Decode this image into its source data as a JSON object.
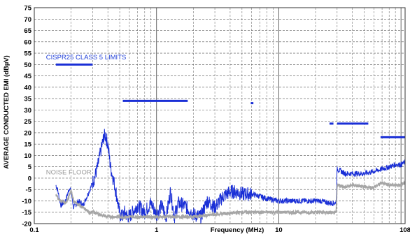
{
  "chart_data": {
    "type": "line",
    "x_scale": "log",
    "xlim": [
      0.1,
      108
    ],
    "ylim": [
      -20,
      75
    ],
    "xlabel": "Frequency (MHz)",
    "ylabel": "AVERAGE CONDUCTED EMI (dBµV)",
    "x_ticks": [
      {
        "value": 0.1,
        "label": "0.1"
      },
      {
        "value": 1,
        "label": "1"
      },
      {
        "value": 10,
        "label": "10"
      },
      {
        "value": 108,
        "label": "108"
      }
    ],
    "y_ticks": [
      75,
      70,
      65,
      60,
      55,
      50,
      45,
      40,
      35,
      30,
      25,
      20,
      15,
      10,
      5,
      0,
      -5,
      -10,
      -15,
      -20
    ],
    "grid": true,
    "annotations": [
      {
        "text": "CISPR25 CLASS 5 LIMITS",
        "color": "#1f3fd8",
        "anchor_x": 0.15,
        "anchor_y": 51
      },
      {
        "text": "NOISE FLOOR",
        "color": "#9a9a9a",
        "anchor_x": 0.15,
        "anchor_y": 1
      }
    ],
    "limits": [
      {
        "x0": 0.15,
        "x1": 0.3,
        "y": 50
      },
      {
        "x0": 0.53,
        "x1": 1.8,
        "y": 34
      },
      {
        "x0": 5.9,
        "x1": 6.2,
        "y": 33
      },
      {
        "x0": 26,
        "x1": 28,
        "y": 24
      },
      {
        "x0": 30,
        "x1": 54,
        "y": 24
      },
      {
        "x0": 68,
        "x1": 108,
        "y": 18
      }
    ],
    "series": [
      {
        "color": "#1a2fd6",
        "x": [
          0.15,
          0.155,
          0.165,
          0.18,
          0.195,
          0.2,
          0.21,
          0.23,
          0.25,
          0.27,
          0.29,
          0.31,
          0.33,
          0.35,
          0.37,
          0.38,
          0.4,
          0.42,
          0.45,
          0.48,
          0.5,
          0.52,
          0.55,
          0.58,
          0.62,
          0.7,
          0.8,
          0.9,
          1.0,
          1.1,
          1.2,
          1.3,
          1.4,
          1.5,
          1.7,
          2.0,
          2.3,
          2.6,
          3.0,
          3.5,
          4.0,
          4.5,
          5.0,
          6.0,
          7.0,
          8.0,
          10,
          12,
          15,
          18,
          22,
          26,
          29,
          29.5,
          30,
          35,
          40,
          50,
          60,
          70,
          80,
          90,
          100,
          108
        ],
        "y": [
          -3,
          -5,
          -12,
          -10,
          -4,
          -6,
          -13,
          -10,
          -12,
          -8,
          -4,
          0,
          5,
          12,
          18,
          19,
          15,
          5,
          -2,
          -10,
          -16,
          -17,
          -15,
          -17,
          -16,
          -12,
          -15,
          -11,
          -16,
          -12,
          -17,
          -6,
          -17,
          -11,
          -12,
          -16,
          -17,
          -10,
          -13,
          -8,
          -6,
          -6,
          -7,
          -7,
          -8,
          -9,
          -10,
          -10,
          -10,
          -10,
          -10,
          -11,
          -11,
          -10,
          4,
          2,
          2,
          2,
          3,
          4,
          5,
          6,
          6,
          7
        ]
      },
      {
        "color": "#a6a6a6",
        "x": [
          0.15,
          0.16,
          0.17,
          0.18,
          0.19,
          0.2,
          0.21,
          0.22,
          0.25,
          0.28,
          0.3,
          0.4,
          0.5,
          0.6,
          0.8,
          1.0,
          1.5,
          2.0,
          3.0,
          5.0,
          8.0,
          10,
          15,
          20,
          28,
          29,
          29.5,
          30,
          35,
          40,
          50,
          60,
          70,
          80,
          100,
          108
        ],
        "y": [
          -7,
          -10,
          -10,
          -11,
          -9,
          -5,
          -10,
          -11,
          -13,
          -15,
          -15,
          -17,
          -17,
          -17,
          -17,
          -17,
          -17,
          -17,
          -16,
          -15,
          -15,
          -15,
          -15,
          -15,
          -15,
          -15,
          -14,
          -3,
          -4,
          -3,
          -4,
          -4,
          -2,
          -3,
          -3,
          -2
        ]
      }
    ]
  }
}
